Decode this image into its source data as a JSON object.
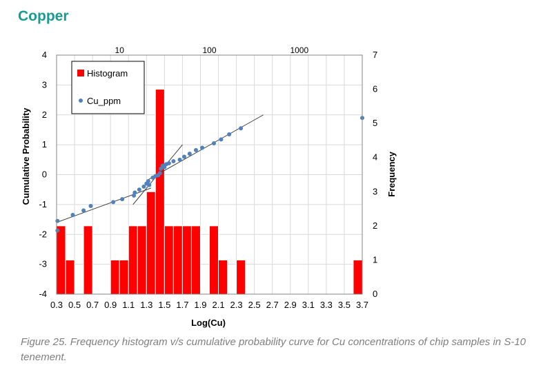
{
  "page": {
    "heading": "Copper",
    "heading_color": "#1a9b91",
    "caption": "Figure 25. Frequency histogram v/s cumulative probability curve for Cu concentrations of chip samples in S-10 tenement.",
    "caption_color": "#7f7f7f"
  },
  "chart_data": {
    "type": "bar",
    "xlabel": "Log(Cu)",
    "ylabel_left": "Cumulative Probability",
    "ylabel_right": "Frequency",
    "x_range": [
      0.3,
      3.7
    ],
    "y_left_range": [
      -4,
      4
    ],
    "y_right_range": [
      0,
      7
    ],
    "grid": true,
    "legend_position": "top-left",
    "x_ticks": [
      "0.3",
      "0.5",
      "0.7",
      "0.9",
      "1.1",
      "1.3",
      "1.5",
      "1.7",
      "1.9",
      "2.1",
      "2.3",
      "2.5",
      "2.7",
      "2.9",
      "3.1",
      "3.3",
      "3.5",
      "3.7"
    ],
    "y_left_ticks": [
      "-4",
      "-3",
      "-2",
      "-1",
      "0",
      "1",
      "2",
      "3",
      "4"
    ],
    "y_right_ticks": [
      "0",
      "1",
      "2",
      "3",
      "4",
      "5",
      "6",
      "7"
    ],
    "top_axis_ticks": [
      {
        "label": "10",
        "value": 1
      },
      {
        "label": "100",
        "value": 2
      },
      {
        "label": "1000",
        "value": 3
      }
    ],
    "series": [
      {
        "name": "Histogram",
        "kind": "bar",
        "color": "#ff0000",
        "bin_width": 0.1,
        "bins": [
          {
            "start": 0.3,
            "count": 2
          },
          {
            "start": 0.4,
            "count": 1
          },
          {
            "start": 0.6,
            "count": 2
          },
          {
            "start": 0.9,
            "count": 1
          },
          {
            "start": 1.0,
            "count": 1
          },
          {
            "start": 1.1,
            "count": 2
          },
          {
            "start": 1.2,
            "count": 2
          },
          {
            "start": 1.3,
            "count": 3
          },
          {
            "start": 1.4,
            "count": 6
          },
          {
            "start": 1.5,
            "count": 2
          },
          {
            "start": 1.6,
            "count": 2
          },
          {
            "start": 1.7,
            "count": 2
          },
          {
            "start": 1.8,
            "count": 2
          },
          {
            "start": 2.0,
            "count": 2
          },
          {
            "start": 2.1,
            "count": 1
          },
          {
            "start": 2.3,
            "count": 1
          },
          {
            "start": 3.6,
            "count": 1
          }
        ]
      },
      {
        "name": "Cu_ppm",
        "kind": "scatter",
        "color": "#4f81bd",
        "points": [
          [
            0.31,
            -1.55
          ],
          [
            0.31,
            -1.87
          ],
          [
            0.48,
            -1.35
          ],
          [
            0.6,
            -1.2
          ],
          [
            0.68,
            -1.05
          ],
          [
            0.93,
            -0.92
          ],
          [
            1.03,
            -0.82
          ],
          [
            1.16,
            -0.7
          ],
          [
            1.17,
            -0.6
          ],
          [
            1.22,
            -0.5
          ],
          [
            1.27,
            -0.4
          ],
          [
            1.3,
            -0.3
          ],
          [
            1.32,
            -0.22
          ],
          [
            1.33,
            -0.35
          ],
          [
            1.37,
            -0.1
          ],
          [
            1.4,
            -0.05
          ],
          [
            1.43,
            -0.02
          ],
          [
            1.45,
            0.05
          ],
          [
            1.46,
            0.2
          ],
          [
            1.48,
            0.3
          ],
          [
            1.5,
            0.25
          ],
          [
            1.52,
            0.35
          ],
          [
            1.55,
            0.38
          ],
          [
            1.6,
            0.45
          ],
          [
            1.67,
            0.5
          ],
          [
            1.72,
            0.6
          ],
          [
            1.78,
            0.7
          ],
          [
            1.85,
            0.82
          ],
          [
            1.92,
            0.9
          ],
          [
            2.05,
            1.05
          ],
          [
            2.13,
            1.18
          ],
          [
            2.22,
            1.35
          ],
          [
            2.35,
            1.55
          ],
          [
            3.7,
            1.9
          ]
        ]
      }
    ],
    "fit_lines": [
      {
        "from": [
          0.3,
          -1.6
        ],
        "to": [
          1.35,
          -0.45
        ]
      },
      {
        "from": [
          1.15,
          -1.0
        ],
        "to": [
          1.7,
          1.0
        ]
      },
      {
        "from": [
          1.3,
          -0.2
        ],
        "to": [
          2.6,
          2.0
        ]
      }
    ]
  }
}
